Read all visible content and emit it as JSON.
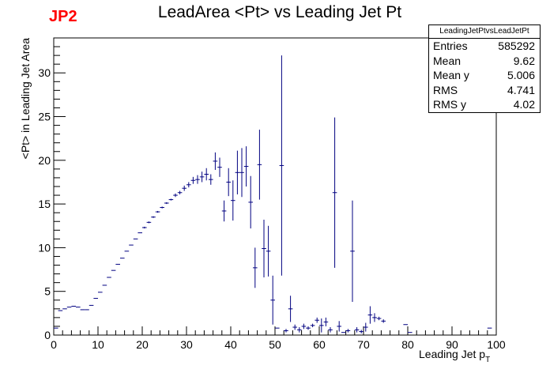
{
  "title": "LeadArea <Pt> vs Leading Jet Pt",
  "tag": {
    "text": "JP2",
    "color": "#ff0000"
  },
  "stats": {
    "name": "LeadingJetPtvsLeadJetPt",
    "rows": [
      {
        "label": "Entries",
        "value": "585292"
      },
      {
        "label": "Mean",
        "value": "9.62"
      },
      {
        "label": "Mean y",
        "value": "5.006"
      },
      {
        "label": "RMS",
        "value": "4.741"
      },
      {
        "label": "RMS y",
        "value": "4.02"
      }
    ]
  },
  "chart_data": {
    "type": "scatter",
    "title": "LeadArea <Pt> vs Leading Jet Pt",
    "xlabel": "Leading Jet p",
    "xlabel_sub": "T",
    "ylabel": "<Pt> in Leading Jet Area",
    "xlim": [
      0,
      100
    ],
    "ylim": [
      0,
      34
    ],
    "xticks": [
      "0",
      "10",
      "20",
      "30",
      "40",
      "50",
      "60",
      "70",
      "80",
      "90",
      "100"
    ],
    "yticks": [
      "0",
      "5",
      "10",
      "15",
      "20",
      "25",
      "30"
    ],
    "bin_width": 1,
    "marker_color": "#000080",
    "grid": false,
    "legend": "stats box, top-right",
    "points": [
      [
        0.5,
        0.8,
        0
      ],
      [
        1.5,
        2.8,
        0
      ],
      [
        2.5,
        3.0,
        0
      ],
      [
        3.5,
        3.2,
        0
      ],
      [
        4.5,
        3.3,
        0
      ],
      [
        5.5,
        3.2,
        0
      ],
      [
        6.5,
        2.9,
        0
      ],
      [
        7.5,
        2.9,
        0
      ],
      [
        8.5,
        3.4,
        0
      ],
      [
        9.5,
        4.2,
        0
      ],
      [
        10.5,
        4.9,
        0
      ],
      [
        11.5,
        5.7,
        0
      ],
      [
        12.5,
        6.6,
        0
      ],
      [
        13.5,
        7.4,
        0
      ],
      [
        14.5,
        8.1,
        0
      ],
      [
        15.5,
        8.8,
        0
      ],
      [
        16.5,
        9.6,
        0
      ],
      [
        17.5,
        10.3,
        0
      ],
      [
        18.5,
        11.0,
        0
      ],
      [
        19.5,
        11.7,
        0
      ],
      [
        20.5,
        12.3,
        0.1
      ],
      [
        21.5,
        12.9,
        0.1
      ],
      [
        22.5,
        13.5,
        0.1
      ],
      [
        23.5,
        14.1,
        0.1
      ],
      [
        24.5,
        14.6,
        0.1
      ],
      [
        25.5,
        15.1,
        0.1
      ],
      [
        26.5,
        15.5,
        0.1
      ],
      [
        27.5,
        16.0,
        0.2
      ],
      [
        28.5,
        16.3,
        0.2
      ],
      [
        29.5,
        16.8,
        0.3
      ],
      [
        30.5,
        17.2,
        0.3
      ],
      [
        31.5,
        17.7,
        0.4
      ],
      [
        32.5,
        17.8,
        0.5
      ],
      [
        33.5,
        18.1,
        0.6
      ],
      [
        34.5,
        18.4,
        0.7
      ],
      [
        35.5,
        17.8,
        0.6
      ],
      [
        36.5,
        19.9,
        1.0
      ],
      [
        37.5,
        19.2,
        1.1
      ],
      [
        38.5,
        14.2,
        1.2
      ],
      [
        39.5,
        17.5,
        1.6
      ],
      [
        40.5,
        15.4,
        2.3
      ],
      [
        41.5,
        18.6,
        2.5
      ],
      [
        42.5,
        18.6,
        2.8
      ],
      [
        43.5,
        19.3,
        2.3
      ],
      [
        44.5,
        15.2,
        3.0
      ],
      [
        45.5,
        7.7,
        2.3
      ],
      [
        46.5,
        19.5,
        4.0
      ],
      [
        47.5,
        9.9,
        3.3
      ],
      [
        48.5,
        9.6,
        2.9
      ],
      [
        49.5,
        4.0,
        2.8
      ],
      [
        50.5,
        0.8,
        0
      ],
      [
        51.5,
        19.4,
        12.6
      ],
      [
        52.5,
        0.5,
        0.2
      ],
      [
        53.5,
        3.0,
        1.5
      ],
      [
        54.5,
        0.9,
        0.3
      ],
      [
        55.5,
        0.6,
        0.3
      ],
      [
        56.5,
        1.0,
        0.3
      ],
      [
        57.5,
        0.8,
        0.2
      ],
      [
        58.5,
        1.1,
        0.2
      ],
      [
        59.5,
        1.7,
        0.3
      ],
      [
        60.5,
        1.1,
        0.8
      ],
      [
        61.5,
        1.5,
        0.5
      ],
      [
        62.5,
        0.6,
        0.3
      ],
      [
        63.5,
        16.3,
        8.6
      ],
      [
        64.5,
        1.0,
        0.6
      ],
      [
        65.5,
        0.3,
        0
      ],
      [
        66.5,
        0.5,
        0.2
      ],
      [
        67.5,
        9.6,
        5.8
      ],
      [
        68.5,
        0.6,
        0.3
      ],
      [
        69.5,
        0.4,
        0.2
      ],
      [
        70.5,
        0.9,
        0.5
      ],
      [
        71.5,
        2.3,
        1.0
      ],
      [
        72.5,
        2.0,
        0.5
      ],
      [
        73.5,
        1.9,
        0.2
      ],
      [
        74.5,
        1.6,
        0.2
      ],
      [
        79.5,
        1.2,
        0
      ],
      [
        80.5,
        0.3,
        0
      ],
      [
        98.5,
        0.8,
        0
      ]
    ]
  }
}
